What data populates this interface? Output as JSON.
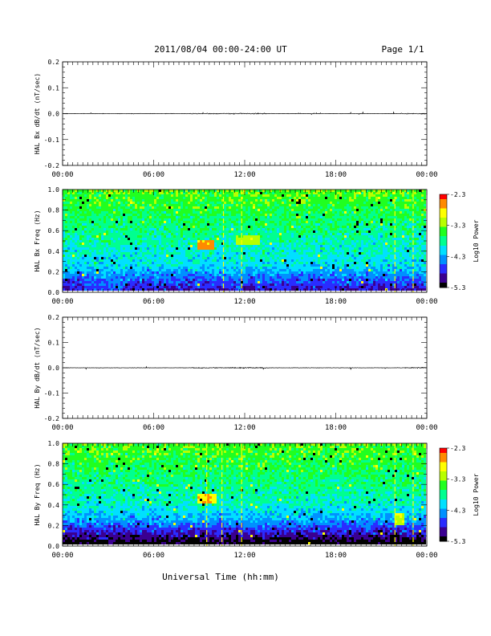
{
  "header": {
    "title": "2011/08/04  00:00-24:00 UT",
    "page": "Page 1/1"
  },
  "footer": {
    "xlabel": "Universal Time (hh:mm)"
  },
  "colors": {
    "trace": "#000000",
    "colormap": [
      "#000000",
      "#3a0090",
      "#2a2cff",
      "#0090ff",
      "#00e0ff",
      "#00ff90",
      "#20ff20",
      "#b8ff00",
      "#ffff00",
      "#ff8a00",
      "#ff0000"
    ]
  },
  "chart_data": [
    {
      "type": "line",
      "ylabel": "HAL Bx dB/dt (nT/sec)",
      "xlim_hours": [
        0,
        24
      ],
      "x_ticks": [
        "00:00",
        "06:00",
        "12:00",
        "18:00",
        "00:00"
      ],
      "ylim": [
        -0.2,
        0.2
      ],
      "y_ticks": [
        "0.2",
        "0.1",
        "0.0",
        "-0.1",
        "-0.2"
      ],
      "baseline": 0.0,
      "series_note": "near-zero fluctuations, max ~0.005 nT/sec, larger spikes ~09:00-13:00 and ~23:00"
    },
    {
      "type": "heatmap",
      "ylabel": "HAL Bx Freq (Hz)",
      "xlim_hours": [
        0,
        24
      ],
      "x_ticks": [
        "00:00",
        "06:00",
        "12:00",
        "18:00",
        "00:00"
      ],
      "ylim": [
        0,
        1.0
      ],
      "y_ticks": [
        "1.0",
        "0.8",
        "0.6",
        "0.4",
        "0.2",
        "0.0"
      ],
      "colorbar": {
        "label": "Log10 Power",
        "range": [
          -5.3,
          -2.3
        ],
        "ticks": [
          "-2.3",
          "-3.3",
          "-4.3",
          "-5.3"
        ]
      },
      "features": [
        {
          "time_hours": [
            8.9,
            10.0
          ],
          "freq_hz": [
            0.4,
            0.5
          ],
          "log_power": -2.7
        },
        {
          "time_hours": [
            11.5,
            13.0
          ],
          "freq_hz": [
            0.45,
            0.55
          ],
          "log_power": -3.2
        },
        {
          "time_hours": [
            1.5,
            4.0
          ],
          "freq_hz": [
            0.0,
            0.4
          ],
          "log_power": -4.6
        }
      ],
      "vertical_lines_hours": [
        10.6,
        11.8,
        21.9,
        23.1
      ]
    },
    {
      "type": "line",
      "ylabel": "HAL By dB/dt (nT/sec)",
      "xlim_hours": [
        0,
        24
      ],
      "x_ticks": [
        "00:00",
        "06:00",
        "12:00",
        "18:00",
        "00:00"
      ],
      "ylim": [
        -0.2,
        0.2
      ],
      "y_ticks": [
        "0.2",
        "0.1",
        "0.0",
        "-0.1",
        "-0.2"
      ],
      "baseline": 0.0,
      "series_note": "near-zero fluctuations, max ~0.004 nT/sec"
    },
    {
      "type": "heatmap",
      "ylabel": "HAL By Freq (Hz)",
      "xlim_hours": [
        0,
        24
      ],
      "x_ticks": [
        "00:00",
        "06:00",
        "12:00",
        "18:00",
        "00:00"
      ],
      "ylim": [
        0,
        1.0
      ],
      "y_ticks": [
        "1.0",
        "0.8",
        "0.6",
        "0.4",
        "0.2",
        "0.0"
      ],
      "colorbar": {
        "label": "Log10 Power",
        "range": [
          -5.3,
          -2.3
        ],
        "ticks": [
          "-2.3",
          "-3.3",
          "-4.3",
          "-5.3"
        ]
      },
      "features": [
        {
          "time_hours": [
            8.9,
            10.2
          ],
          "freq_hz": [
            0.4,
            0.5
          ],
          "log_power": -2.8
        },
        {
          "time_hours": [
            22.0,
            22.6
          ],
          "freq_hz": [
            0.2,
            0.3
          ],
          "log_power": -3.1
        }
      ],
      "vertical_lines_hours": [
        9.5,
        10.5,
        11.8,
        21.9,
        23.1
      ]
    }
  ]
}
